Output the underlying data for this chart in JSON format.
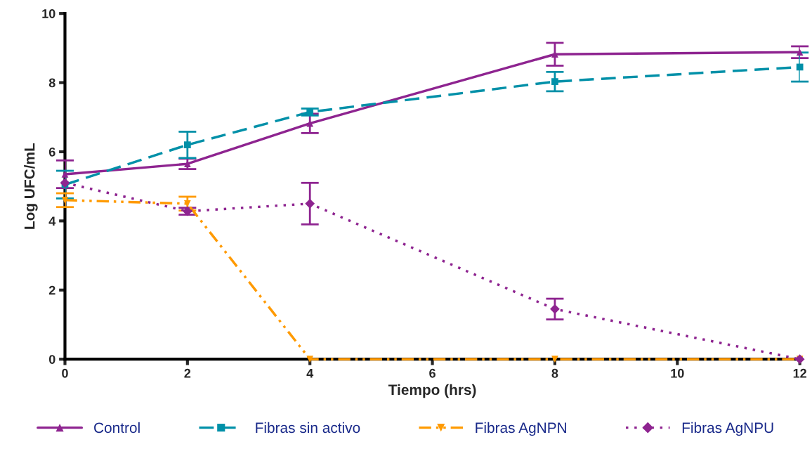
{
  "chart_data": {
    "type": "line",
    "xlabel": "Tiempo (hrs)",
    "ylabel": "Log UFC/mL",
    "x": [
      0,
      2,
      4,
      8,
      12
    ],
    "xlim": [
      0,
      12
    ],
    "xticks": [
      0,
      2,
      4,
      6,
      8,
      10,
      12
    ],
    "ylim": [
      0,
      10
    ],
    "yticks": [
      0,
      2,
      4,
      6,
      8,
      10
    ],
    "grid": false,
    "legend": "bottom",
    "series": [
      {
        "name": "Control",
        "color": "#8e2490",
        "marker": "triangle",
        "line_style": "solid",
        "values": [
          5.35,
          5.65,
          6.82,
          8.82,
          8.88
        ],
        "errors": [
          0.4,
          0.15,
          0.28,
          0.33,
          0.17
        ]
      },
      {
        "name": "Fibras sin activo",
        "color": "#0090a8",
        "marker": "square",
        "line_style": "dashed",
        "values": [
          5.05,
          6.2,
          7.15,
          8.03,
          8.45
        ],
        "errors": [
          0.4,
          0.38,
          0.1,
          0.28,
          0.42
        ]
      },
      {
        "name": "Fibras AgNPN",
        "color": "#ff9a00",
        "marker": "triangle_down",
        "line_style": "dashdotdot",
        "values": [
          4.6,
          4.5,
          0,
          0,
          0
        ],
        "errors": [
          0.2,
          0.2,
          null,
          null,
          null
        ]
      },
      {
        "name": "Fibras AgNPU",
        "color": "#8e2490",
        "marker": "diamond",
        "line_style": "dotted",
        "values": [
          5.1,
          4.28,
          4.5,
          1.45,
          0
        ],
        "errors": [
          null,
          0.1,
          0.6,
          0.3,
          null
        ]
      }
    ]
  }
}
